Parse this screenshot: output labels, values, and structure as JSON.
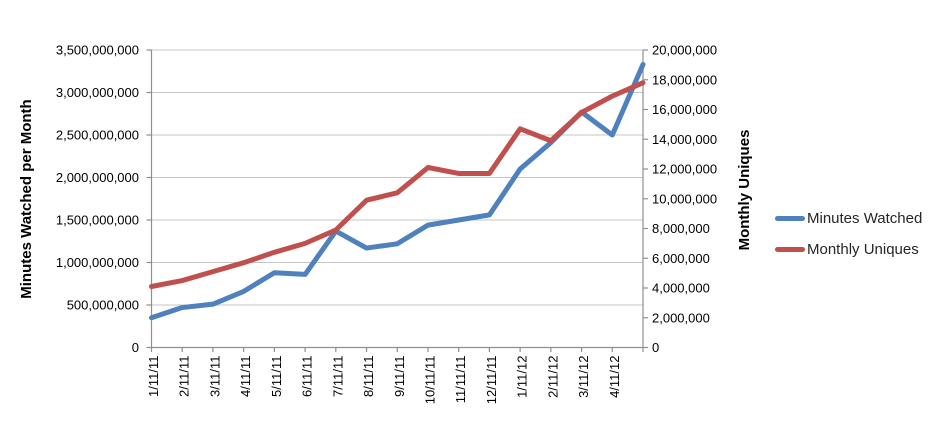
{
  "chart_data": {
    "type": "line",
    "title": "",
    "x_labels": [
      "1/11/11",
      "2/11/11",
      "3/11/11",
      "4/11/11",
      "5/11/11",
      "6/11/11",
      "7/11/11",
      "8/11/11",
      "9/11/11",
      "10/11/11",
      "11/11/11",
      "12/11/11",
      "1/11/12",
      "2/11/12",
      "3/11/12",
      "4/11/12",
      ""
    ],
    "series": [
      {
        "name": "Minutes Watched",
        "axis": "left",
        "color": "#4F81BD",
        "values": [
          350000000,
          470000000,
          510000000,
          660000000,
          880000000,
          860000000,
          1370000000,
          1170000000,
          1220000000,
          1440000000,
          1500000000,
          1560000000,
          2100000000,
          2410000000,
          2770000000,
          2500000000,
          3330000000
        ]
      },
      {
        "name": "Monthly Uniques",
        "axis": "right",
        "color": "#C0504D",
        "values": [
          4100000,
          4500000,
          5100000,
          5700000,
          6400000,
          7000000,
          7900000,
          9900000,
          10400000,
          12100000,
          11700000,
          11700000,
          14700000,
          13900000,
          15800000,
          16900000,
          17800000
        ]
      }
    ],
    "left_axis": {
      "title": "Minutes Watched per Month",
      "min": 0,
      "max": 3500000000,
      "step": 500000000,
      "tick_labels": [
        "0",
        "500,000,000",
        "1,000,000,000",
        "1,500,000,000",
        "2,000,000,000",
        "2,500,000,000",
        "3,000,000,000",
        "3,500,000,000"
      ]
    },
    "right_axis": {
      "title": "Monthly Uniques",
      "min": 0,
      "max": 20000000,
      "step": 2000000,
      "tick_labels": [
        "0",
        "2,000,000",
        "4,000,000",
        "6,000,000",
        "8,000,000",
        "10,000,000",
        "12,000,000",
        "14,000,000",
        "16,000,000",
        "18,000,000",
        "20,000,000"
      ]
    },
    "legend": {
      "position": "right",
      "entries": [
        "Minutes Watched",
        "Monthly Uniques"
      ]
    },
    "grid": true,
    "colors": {
      "gridline": "#C6C6C6",
      "axis_line": "#8F8F8F",
      "text": "#000000",
      "legend_text": "#262626"
    }
  }
}
